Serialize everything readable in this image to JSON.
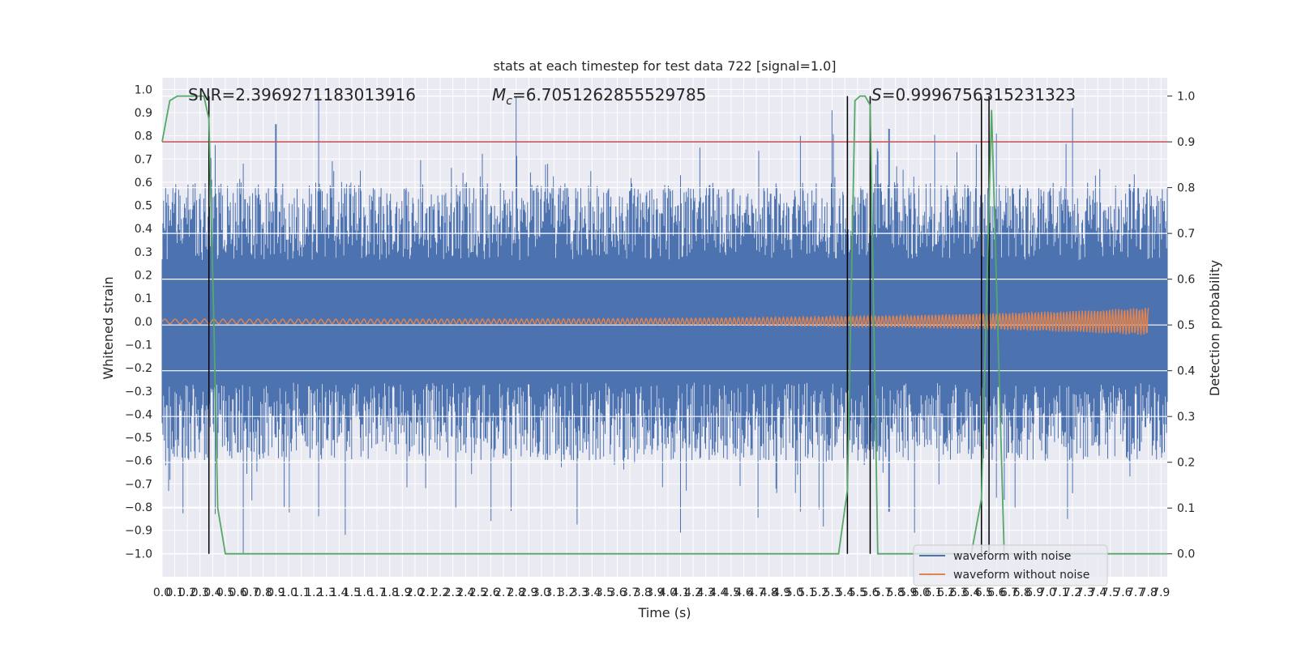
{
  "chart_data": {
    "type": "line",
    "title": "stats at each timestep for test data 722 [signal=1.0]",
    "xlabel": "Time (s)",
    "ylabel": "Whitened strain",
    "ylabel_right": "Detection probability",
    "xlim": [
      0.0,
      7.95
    ],
    "ylim": [
      -1.1,
      1.05
    ],
    "ylim_right": [
      -0.05,
      1.04
    ],
    "x_ticks": [
      "0.0",
      "0.1",
      "0.2",
      "0.3",
      "0.4",
      "0.5",
      "0.6",
      "0.7",
      "0.8",
      "0.9",
      "1.0",
      "1.1",
      "1.2",
      "1.3",
      "1.4",
      "1.5",
      "1.6",
      "1.7",
      "1.8",
      "1.9",
      "2.0",
      "2.1",
      "2.2",
      "2.3",
      "2.4",
      "2.5",
      "2.6",
      "2.7",
      "2.8",
      "2.9",
      "3.0",
      "3.1",
      "3.2",
      "3.3",
      "3.4",
      "3.5",
      "3.6",
      "3.7",
      "3.8",
      "3.9",
      "4.0",
      "4.1",
      "4.2",
      "4.3",
      "4.4",
      "4.5",
      "4.6",
      "4.7",
      "4.8",
      "4.9",
      "5.0",
      "5.1",
      "5.2",
      "5.3",
      "5.4",
      "5.5",
      "5.6",
      "5.7",
      "5.8",
      "5.9",
      "6.0",
      "6.1",
      "6.2",
      "6.3",
      "6.4",
      "6.5",
      "6.6",
      "6.7",
      "6.8",
      "6.9",
      "7.0",
      "7.1",
      "7.2",
      "7.3",
      "7.4",
      "7.5",
      "7.6",
      "7.7",
      "7.8",
      "7.9"
    ],
    "y_ticks": [
      "1.0",
      "0.9",
      "0.8",
      "0.7",
      "0.6",
      "0.5",
      "0.4",
      "0.3",
      "0.2",
      "0.1",
      "0.0",
      "−0.1",
      "−0.2",
      "−0.3",
      "−0.4",
      "−0.5",
      "−0.6",
      "−0.7",
      "−0.8",
      "−0.9",
      "−1.0"
    ],
    "y_ticks_right": [
      "1.0",
      "0.9",
      "0.8",
      "0.7",
      "0.6",
      "0.5",
      "0.4",
      "0.3",
      "0.2",
      "0.1",
      "0.0"
    ],
    "annotations": {
      "snr": "SNR=2.3969271183013916",
      "mc_symbol": "M",
      "mc_sub": "c",
      "mc_value": "=6.7051262855529785",
      "s_symbol": "S",
      "s_value": "=0.9996756315231323"
    },
    "threshold": {
      "axis": "right",
      "value": 0.9,
      "color": "#c44e52"
    },
    "vertical_lines": [
      0.37,
      5.42,
      5.6,
      6.48,
      6.54
    ],
    "series": [
      {
        "name": "waveform with noise",
        "axis": "left",
        "color": "#4c72b0",
        "envelope_peaks": [
          {
            "x": 0.03,
            "top": 0.58,
            "bottom": -0.62
          },
          {
            "x": 0.05,
            "top": 0.5,
            "bottom": -0.73
          },
          {
            "x": 0.3,
            "top": 0.55,
            "bottom": -0.48
          },
          {
            "x": 0.42,
            "top": 0.76,
            "bottom": -0.83
          },
          {
            "x": 0.64,
            "top": 0.68,
            "bottom": -1.0
          },
          {
            "x": 0.9,
            "top": 0.85,
            "bottom": -0.5
          },
          {
            "x": 1.24,
            "top": 0.98,
            "bottom": -0.84
          },
          {
            "x": 1.45,
            "top": 0.55,
            "bottom": -0.92
          },
          {
            "x": 2.8,
            "top": 0.97,
            "bottom": -0.55
          },
          {
            "x": 2.6,
            "top": 0.5,
            "bottom": -0.86
          },
          {
            "x": 4.1,
            "top": 0.63,
            "bottom": -0.91
          },
          {
            "x": 5.05,
            "top": 0.8,
            "bottom": -0.82
          },
          {
            "x": 5.3,
            "top": 0.91,
            "bottom": -0.6
          },
          {
            "x": 5.75,
            "top": 0.83,
            "bottom": -0.82
          },
          {
            "x": 5.95,
            "top": 0.55,
            "bottom": -0.91
          },
          {
            "x": 6.6,
            "top": 0.81,
            "bottom": -0.76
          },
          {
            "x": 7.2,
            "top": 0.92,
            "bottom": -0.74
          }
        ],
        "baseline_amplitude": 0.48
      },
      {
        "name": "waveform without noise",
        "axis": "left",
        "color": "#dd8452",
        "amplitude_start": 0.01,
        "amplitude_end": 0.06,
        "x_end": 7.8
      },
      {
        "axis": "right",
        "color": "#55a868",
        "x": [
          0.0,
          0.06,
          0.12,
          0.2,
          0.28,
          0.33,
          0.37,
          0.41,
          0.44,
          0.5,
          2.5,
          5.35,
          5.42,
          5.48,
          5.52,
          5.56,
          5.6,
          5.66,
          6.4,
          6.48,
          6.52,
          6.56,
          6.66,
          7.95
        ],
        "y": [
          0.9,
          0.99,
          1.0,
          1.0,
          1.0,
          1.0,
          0.95,
          0.5,
          0.1,
          0.0,
          0.0,
          0.0,
          0.14,
          0.99,
          1.0,
          1.0,
          0.98,
          0.0,
          0.0,
          0.12,
          0.55,
          0.97,
          0.0,
          0.0
        ]
      }
    ],
    "grid": true,
    "background": "#eaeaf2",
    "legend": {
      "placement": "lower-right",
      "entries": [
        "waveform with noise",
        "waveform without noise"
      ]
    }
  }
}
